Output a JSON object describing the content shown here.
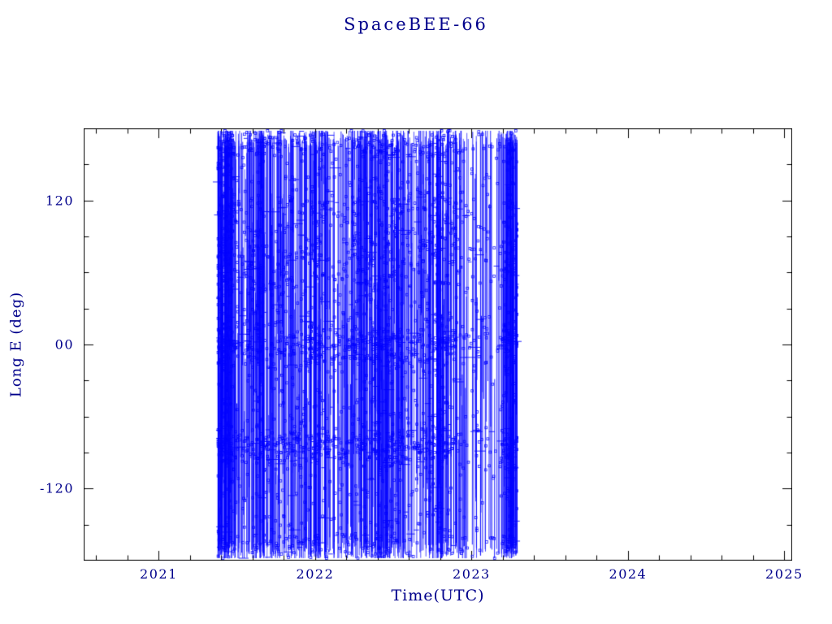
{
  "page": {
    "background": "#ffffff"
  },
  "chart_data": {
    "type": "line",
    "title": "SpaceBEE-66",
    "xlabel": "Time(UTC)",
    "ylabel": "Long E (deg)",
    "xlim": [
      2020.52,
      2025.05
    ],
    "ylim": [
      -180,
      180
    ],
    "grid": false,
    "legend": false,
    "axis_color": "#000000",
    "text_color": "#00008b",
    "x_ticks": {
      "major": [
        2021,
        2022,
        2023,
        2024,
        2025
      ],
      "labels": [
        "2021",
        "2022",
        "2023",
        "2024",
        "2025"
      ],
      "minor_step": 0.2
    },
    "y_ticks": {
      "major": [
        -120,
        0,
        120
      ],
      "labels": [
        "-120",
        "00",
        "120"
      ],
      "minor_step": 30
    },
    "series": [
      {
        "name": "SpaceBEE-66 east longitude",
        "color": "#0000ff",
        "marker": "open-square",
        "t_start": 2021.38,
        "t_end": 2023.29,
        "y_min": -178,
        "y_max": 178,
        "description": "East longitude of SpaceBEE-66 versus time. Longitude drifts rapidly and wraps across +/-180 deg, producing dense near-vertical blue traces filling the band between 2021.38 and 2023.29, with denser horizontal clusters near 0 deg and near -85 deg. No data before 2021.38 or after 2023.29.",
        "synthesis": {
          "seed": 7,
          "n_lines": 900,
          "full_span_prob": 0.45,
          "n_markers": 2800,
          "n_hsegs": 350,
          "uniform_x_prob": 0.35,
          "x_clusters": [
            {
              "center": 2021.43,
              "sd": 0.035,
              "w": 3.0
            },
            {
              "center": 2021.62,
              "sd": 0.05,
              "w": 1.5
            },
            {
              "center": 2021.8,
              "sd": 0.07,
              "w": 1.5
            },
            {
              "center": 2022.0,
              "sd": 0.08,
              "w": 2.0
            },
            {
              "center": 2022.3,
              "sd": 0.08,
              "w": 2.0
            },
            {
              "center": 2022.5,
              "sd": 0.09,
              "w": 2.5
            },
            {
              "center": 2022.8,
              "sd": 0.08,
              "w": 2.5
            },
            {
              "center": 2023.25,
              "sd": 0.03,
              "w": 1.8
            }
          ],
          "uniform_y_prob": 0.43,
          "y_bands": [
            {
              "mean": 0,
              "sd": 9,
              "w": 0.16
            },
            {
              "mean": -85,
              "sd": 8,
              "w": 0.14
            },
            {
              "mean": 70,
              "sd": 20,
              "w": 0.1
            },
            {
              "mean": 165,
              "sd": 7,
              "w": 0.07
            },
            {
              "mean": -165,
              "sd": 7,
              "w": 0.05
            },
            {
              "mean": 115,
              "sd": 10,
              "w": 0.05
            }
          ]
        }
      }
    ]
  }
}
